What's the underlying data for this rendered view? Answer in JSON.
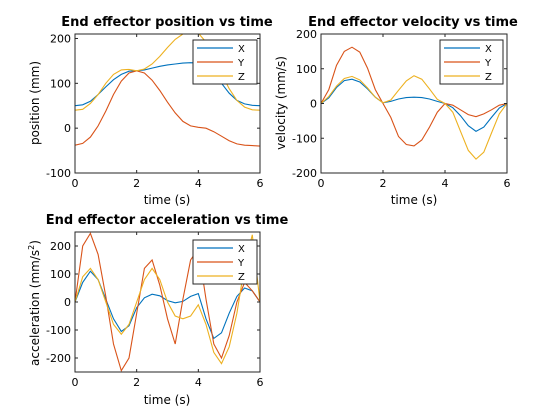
{
  "figure": {
    "background": "#ffffff"
  },
  "chart_data": [
    {
      "type": "line",
      "title": "End effector position vs time",
      "xlabel": "time (s)",
      "ylabel": "position (mm)",
      "xlim": [
        0,
        6
      ],
      "ylim": [
        -100,
        210
      ],
      "xticks": [
        "0",
        "2",
        "4",
        "6"
      ],
      "yticks": [
        "-100",
        "0",
        "100",
        "200"
      ],
      "grid": false,
      "legend_position": "top-right",
      "x": [
        0,
        0.25,
        0.5,
        0.75,
        1,
        1.25,
        1.5,
        1.75,
        2,
        2.25,
        2.5,
        2.75,
        3,
        3.25,
        3.5,
        3.75,
        4,
        4.25,
        4.5,
        4.75,
        5,
        5.25,
        5.5,
        5.75,
        6
      ],
      "series": [
        {
          "name": "X",
          "color": "#0072BD",
          "values": [
            50,
            52,
            60,
            75,
            92,
            108,
            120,
            127,
            128,
            130,
            134,
            138,
            141,
            143,
            145,
            146,
            145,
            138,
            122,
            100,
            78,
            62,
            54,
            51,
            50
          ]
        },
        {
          "name": "Y",
          "color": "#D95319",
          "values": [
            -38,
            -34,
            -20,
            5,
            38,
            75,
            105,
            123,
            128,
            123,
            107,
            84,
            58,
            34,
            15,
            5,
            2,
            0,
            -8,
            -18,
            -28,
            -35,
            -38,
            -39,
            -40
          ]
        },
        {
          "name": "Z",
          "color": "#EDB120",
          "values": [
            40,
            42,
            55,
            75,
            100,
            120,
            130,
            131,
            128,
            132,
            143,
            160,
            180,
            198,
            210,
            216,
            212,
            192,
            160,
            122,
            88,
            62,
            47,
            41,
            40
          ]
        }
      ]
    },
    {
      "type": "line",
      "title": "End effector velocity vs time",
      "xlabel": "time (s)",
      "ylabel": "velocity (mm/s)",
      "xlim": [
        0,
        6
      ],
      "ylim": [
        -200,
        200
      ],
      "xticks": [
        "0",
        "2",
        "4",
        "6"
      ],
      "yticks": [
        "-200",
        "-100",
        "0",
        "100",
        "200"
      ],
      "grid": false,
      "legend_position": "top-right",
      "x": [
        0,
        0.25,
        0.5,
        0.75,
        1,
        1.25,
        1.5,
        1.75,
        2,
        2.25,
        2.5,
        2.75,
        3,
        3.25,
        3.5,
        3.75,
        4,
        4.25,
        4.5,
        4.75,
        5,
        5.25,
        5.5,
        5.75,
        6
      ],
      "series": [
        {
          "name": "X",
          "color": "#0072BD",
          "values": [
            0,
            16,
            46,
            66,
            70,
            62,
            42,
            18,
            2,
            6,
            13,
            17,
            18,
            17,
            13,
            6,
            0,
            -12,
            -35,
            -64,
            -80,
            -68,
            -40,
            -13,
            0
          ]
        },
        {
          "name": "Y",
          "color": "#D95319",
          "values": [
            0,
            40,
            110,
            150,
            162,
            148,
            102,
            40,
            0,
            -40,
            -95,
            -118,
            -122,
            -105,
            -68,
            -25,
            0,
            -5,
            -18,
            -32,
            -38,
            -30,
            -18,
            -5,
            0
          ]
        },
        {
          "name": "Z",
          "color": "#EDB120",
          "values": [
            0,
            20,
            50,
            72,
            78,
            68,
            45,
            18,
            2,
            10,
            38,
            65,
            80,
            70,
            42,
            12,
            0,
            -25,
            -80,
            -135,
            -160,
            -140,
            -85,
            -30,
            0
          ]
        }
      ]
    },
    {
      "type": "line",
      "title": "End effector acceleration vs time",
      "xlabel": "time (s)",
      "ylabel_main": "acceleration (mm/s",
      "ylabel_exponent": "2",
      "ylabel_close": ")",
      "xlim": [
        0,
        6
      ],
      "ylim": [
        -250,
        250
      ],
      "xticks": [
        "0",
        "2",
        "4",
        "6"
      ],
      "yticks": [
        "-200",
        "-100",
        "0",
        "100",
        "200"
      ],
      "grid": false,
      "legend_position": "top-right",
      "x": [
        0,
        0.25,
        0.5,
        0.75,
        1,
        1.25,
        1.5,
        1.75,
        2,
        2.25,
        2.5,
        2.75,
        3,
        3.25,
        3.5,
        3.75,
        4,
        4.25,
        4.5,
        4.75,
        5,
        5.25,
        5.5,
        5.75,
        6
      ],
      "series": [
        {
          "name": "X",
          "color": "#0072BD",
          "values": [
            0,
            70,
            110,
            80,
            10,
            -60,
            -105,
            -85,
            -20,
            15,
            28,
            22,
            5,
            -3,
            2,
            20,
            30,
            -60,
            -130,
            -110,
            -40,
            20,
            50,
            40,
            0
          ]
        },
        {
          "name": "Y",
          "color": "#D95319",
          "values": [
            0,
            200,
            245,
            170,
            20,
            -150,
            -245,
            -200,
            -40,
            120,
            150,
            60,
            -60,
            -150,
            10,
            150,
            190,
            10,
            -150,
            -200,
            -120,
            0,
            70,
            40,
            0
          ]
        },
        {
          "name": "Z",
          "color": "#EDB120",
          "values": [
            0,
            90,
            120,
            80,
            0,
            -80,
            -115,
            -80,
            0,
            80,
            120,
            80,
            0,
            -50,
            -60,
            -50,
            -10,
            -80,
            -180,
            -220,
            -160,
            -40,
            130,
            240,
            0
          ]
        }
      ]
    }
  ]
}
